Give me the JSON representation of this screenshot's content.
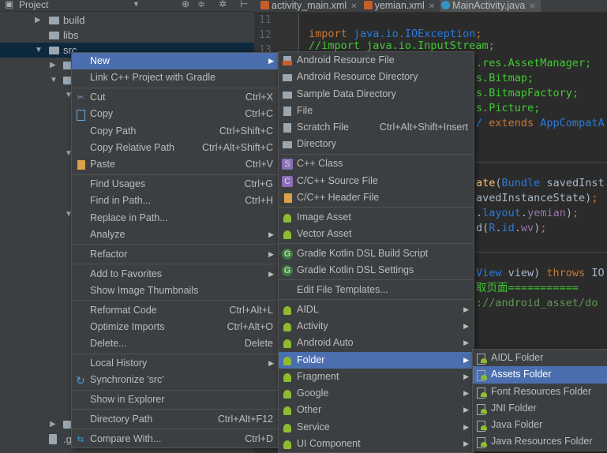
{
  "project_panel": {
    "title": "Project",
    "tree": [
      {
        "label": "build",
        "arrow": "▶",
        "folder": true
      },
      {
        "label": "libs",
        "arrow": "",
        "folder": true
      },
      {
        "label": "src",
        "arrow": "▼",
        "folder": true,
        "selected": true
      },
      {
        "label": "",
        "arrow": "▶",
        "folder": true
      },
      {
        "label": "",
        "arrow": "▼",
        "folder": true
      },
      {
        "label": "",
        "arrow": "▼",
        "folder": false
      },
      {
        "label": "",
        "arrow": "▼",
        "folder": false
      },
      {
        "label": "",
        "arrow": "▼",
        "folder": false
      },
      {
        "label": "",
        "arrow": "▶",
        "folder": true
      },
      {
        "label": ".g",
        "arrow": "",
        "folder": false
      }
    ]
  },
  "editor": {
    "tabs": [
      {
        "label": "activity_main.xml",
        "icon": "xml-file-icon"
      },
      {
        "label": "yemian.xml",
        "icon": "xml-file-icon"
      },
      {
        "label": "MainActivity.java",
        "icon": "java-class-icon",
        "active": true
      }
    ],
    "line_numbers": [
      "11",
      "12",
      "13"
    ],
    "code": [
      [
        {
          "t": "import ",
          "c": "#cc7832"
        },
        {
          "t": "java.io.IOException",
          "c": "#287bde"
        },
        {
          "t": ";",
          "c": "#cc7832"
        }
      ],
      [
        {
          "t": "//import java.io.InputStream;",
          "c": "#43c933"
        }
      ],
      [
        {
          "t": ".res.AssetManager;",
          "c": "#43c933"
        }
      ],
      [
        {
          "t": "s.Bitmap;",
          "c": "#43c933"
        }
      ],
      [
        {
          "t": "s.BitmapFactory;",
          "c": "#43c933"
        }
      ],
      [
        {
          "t": "s.Picture;",
          "c": "#43c933"
        }
      ],
      [
        {
          "t": "/ ",
          "c": "#287bde"
        },
        {
          "t": "extends ",
          "c": "#cc7832"
        },
        {
          "t": "AppCompatA",
          "c": "#287bde"
        }
      ],
      [
        {
          "t": "ate",
          "c": "#ffc66d"
        },
        {
          "t": "(",
          "c": "#a9b7c6"
        },
        {
          "t": "Bundle ",
          "c": "#287bde"
        },
        {
          "t": "savedInst",
          "c": "#a9b7c6"
        }
      ],
      [
        {
          "t": "avedInstanceState)",
          "c": "#a9b7c6"
        },
        {
          "t": ";",
          "c": "#cc7832"
        }
      ],
      [
        {
          "t": ".",
          "c": "#a9b7c6"
        },
        {
          "t": "layout",
          "c": "#287bde"
        },
        {
          "t": ".",
          "c": "#a9b7c6"
        },
        {
          "t": "yemian",
          "c": "#9876aa"
        },
        {
          "t": ")",
          "c": "#a9b7c6"
        },
        {
          "t": ";",
          "c": "#cc7832"
        }
      ],
      [
        {
          "t": "d(",
          "c": "#a9b7c6"
        },
        {
          "t": "R",
          "c": "#287bde"
        },
        {
          "t": ".",
          "c": "#a9b7c6"
        },
        {
          "t": "id",
          "c": "#287bde"
        },
        {
          "t": ".",
          "c": "#a9b7c6"
        },
        {
          "t": "wv",
          "c": "#9876aa"
        },
        {
          "t": ")",
          "c": "#a9b7c6"
        },
        {
          "t": ";",
          "c": "#cc7832"
        }
      ],
      [
        {
          "t": "View ",
          "c": "#287bde"
        },
        {
          "t": "view) ",
          "c": "#a9b7c6"
        },
        {
          "t": "throws ",
          "c": "#cc7832"
        },
        {
          "t": "IO",
          "c": "#a9b7c6"
        }
      ],
      [
        {
          "t": "取页面===========",
          "c": "#43c933"
        }
      ],
      [
        {
          "t": "://android_asset/do",
          "c": "#629755"
        }
      ]
    ]
  },
  "context_menu": [
    {
      "label": "New",
      "submenu": true,
      "highlight": true
    },
    {
      "label": "Link C++ Project with Gradle"
    },
    {
      "sep": true
    },
    {
      "label": "Cut",
      "shortcut": "Ctrl+X",
      "icon": "cut"
    },
    {
      "label": "Copy",
      "shortcut": "Ctrl+C",
      "icon": "copy"
    },
    {
      "label": "Copy Path",
      "shortcut": "Ctrl+Shift+C"
    },
    {
      "label": "Copy Relative Path",
      "shortcut": "Ctrl+Alt+Shift+C"
    },
    {
      "label": "Paste",
      "shortcut": "Ctrl+V",
      "icon": "paste"
    },
    {
      "sep": true
    },
    {
      "label": "Find Usages",
      "shortcut": "Ctrl+G"
    },
    {
      "label": "Find in Path...",
      "shortcut": "Ctrl+H"
    },
    {
      "label": "Replace in Path..."
    },
    {
      "label": "Analyze",
      "submenu": true
    },
    {
      "sep": true
    },
    {
      "label": "Refactor",
      "submenu": true
    },
    {
      "sep": true
    },
    {
      "label": "Add to Favorites",
      "submenu": true
    },
    {
      "label": "Show Image Thumbnails"
    },
    {
      "sep": true
    },
    {
      "label": "Reformat Code",
      "shortcut": "Ctrl+Alt+L"
    },
    {
      "label": "Optimize Imports",
      "shortcut": "Ctrl+Alt+O"
    },
    {
      "label": "Delete...",
      "shortcut": "Delete"
    },
    {
      "sep": true
    },
    {
      "label": "Local History",
      "submenu": true
    },
    {
      "label": "Synchronize 'src'",
      "icon": "sync"
    },
    {
      "sep": true
    },
    {
      "label": "Show in Explorer"
    },
    {
      "sep": true
    },
    {
      "label": "Directory Path",
      "shortcut": "Ctrl+Alt+F12"
    },
    {
      "sep": true
    },
    {
      "label": "Compare With...",
      "shortcut": "Ctrl+D",
      "icon": "compare"
    }
  ],
  "new_submenu": [
    {
      "label": "Android Resource File",
      "icon": "res"
    },
    {
      "label": "Android Resource Directory",
      "icon": "folder"
    },
    {
      "label": "Sample Data Directory",
      "icon": "folder"
    },
    {
      "label": "File",
      "icon": "file"
    },
    {
      "label": "Scratch File",
      "shortcut": "Ctrl+Alt+Shift+Insert",
      "icon": "file"
    },
    {
      "label": "Directory",
      "icon": "folder"
    },
    {
      "sep": true
    },
    {
      "label": "C++ Class",
      "icon": "cpp",
      "glyph": "S"
    },
    {
      "label": "C/C++ Source File",
      "icon": "cpp",
      "glyph": "C"
    },
    {
      "label": "C/C++ Header File",
      "icon": "paste"
    },
    {
      "sep": true
    },
    {
      "label": "Image Asset",
      "icon": "android"
    },
    {
      "label": "Vector Asset",
      "icon": "android"
    },
    {
      "sep": true
    },
    {
      "label": "Gradle Kotlin DSL Build Script",
      "icon": "gradle",
      "glyph": "G"
    },
    {
      "label": "Gradle Kotlin DSL Settings",
      "icon": "gradle",
      "glyph": "G"
    },
    {
      "sep": true
    },
    {
      "label": "Edit File Templates..."
    },
    {
      "sep": true
    },
    {
      "label": "AIDL",
      "icon": "android",
      "submenu": true
    },
    {
      "label": "Activity",
      "icon": "android",
      "submenu": true
    },
    {
      "label": "Android Auto",
      "icon": "android",
      "submenu": true
    },
    {
      "label": "Folder",
      "icon": "android",
      "submenu": true,
      "highlight": true
    },
    {
      "label": "Fragment",
      "icon": "android",
      "submenu": true
    },
    {
      "label": "Google",
      "icon": "android",
      "submenu": true
    },
    {
      "label": "Other",
      "icon": "android",
      "submenu": true
    },
    {
      "label": "Service",
      "icon": "android",
      "submenu": true
    },
    {
      "label": "UI Component",
      "icon": "android",
      "submenu": true
    }
  ],
  "folder_submenu": [
    {
      "label": "AIDL Folder",
      "icon": "afolder"
    },
    {
      "label": "Assets Folder",
      "icon": "afolder",
      "highlight": true
    },
    {
      "label": "Font Resources Folder",
      "icon": "afolder"
    },
    {
      "label": "JNI Folder",
      "icon": "afolder"
    },
    {
      "label": "Java Folder",
      "icon": "afolder"
    },
    {
      "label": "Java Resources Folder",
      "icon": "afolder"
    }
  ],
  "colors": {
    "highlight": "#4b6eaf",
    "menu_bg": "#3c3f41",
    "editor_bg": "#2b2b2b",
    "selected_row": "#0d293e"
  }
}
